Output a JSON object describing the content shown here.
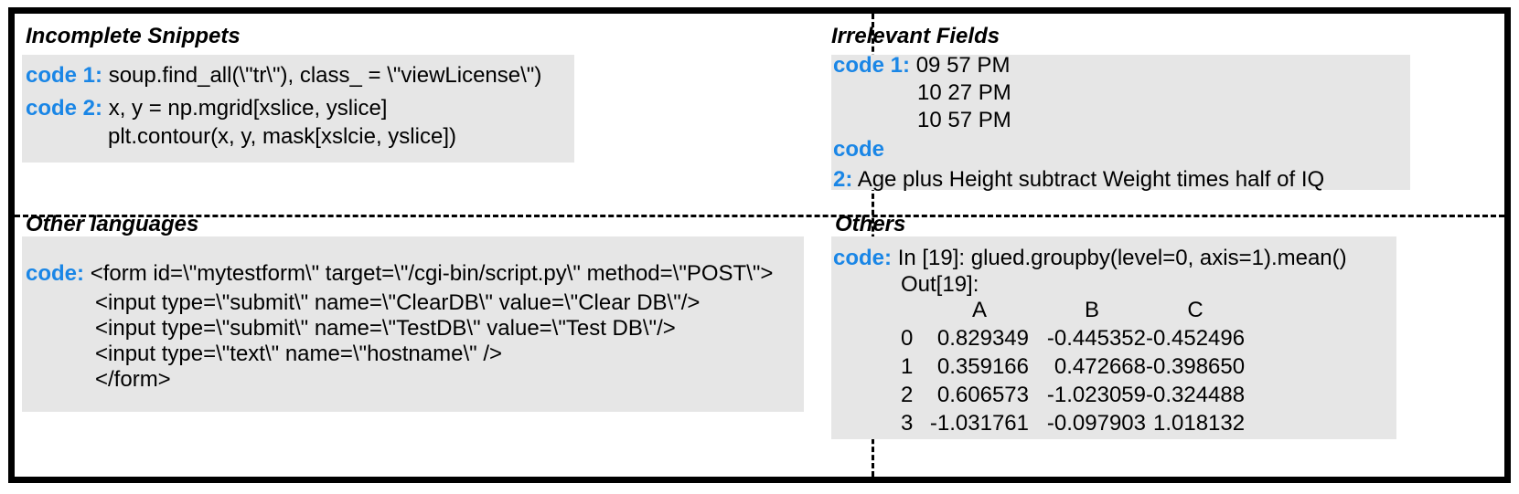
{
  "panels": {
    "incomplete": {
      "title": "Incomplete Snippets",
      "code1_label": "code 1:",
      "code1_line1": "soup.find_all(\\\"tr\\\"), class_ = \\\"viewLicense\\\")",
      "code2_label": "code 2:",
      "code2_line1": "x, y = np.mgrid[xslice, yslice]",
      "code2_line2": "plt.contour(x, y, mask[xslcie, yslice])"
    },
    "irrelevant": {
      "title": "Irrelevant Fields",
      "code1_label": "code 1:",
      "code1_lines": [
        "09 57 PM",
        "10 27 PM",
        "10 57 PM"
      ],
      "code2_label_a": "code",
      "code2_label_b": "2:",
      "code2_line1": "Age plus Height subtract Weight times half of IQ"
    },
    "other_languages": {
      "title": "Other languages",
      "code_label": "code:",
      "lines": [
        "<form id=\\\"mytestform\\\" target=\\\"/cgi-bin/script.py\\\" method=\\\"POST\\\">",
        "<input type=\\\"submit\\\" name=\\\"ClearDB\\\" value=\\\"Clear DB\\\"/>",
        "<input type=\\\"submit\\\" name=\\\"TestDB\\\" value=\\\"Test DB\\\"/>",
        "<input type=\\\"text\\\" name=\\\"hostname\\\" />",
        "</form>"
      ]
    },
    "others": {
      "title": "Others",
      "code_label": "code:",
      "line1": "In [19]: glued.groupby(level=0, axis=1).mean()",
      "line2": "Out[19]:",
      "table": {
        "headers": [
          "A",
          "B",
          "C"
        ],
        "rows": [
          [
            "0",
            "0.829349",
            "-0.445352",
            "-0.452496"
          ],
          [
            "1",
            "0.359166",
            "0.472668",
            "-0.398650"
          ],
          [
            "2",
            "0.606573",
            "-1.023059",
            "-0.324488"
          ],
          [
            "3",
            "-1.031761",
            "-0.097903",
            "1.018132"
          ]
        ]
      }
    }
  },
  "colors": {
    "keyword": "#1a86e6",
    "code_box": "#e6e6e6",
    "border": "#000000"
  }
}
